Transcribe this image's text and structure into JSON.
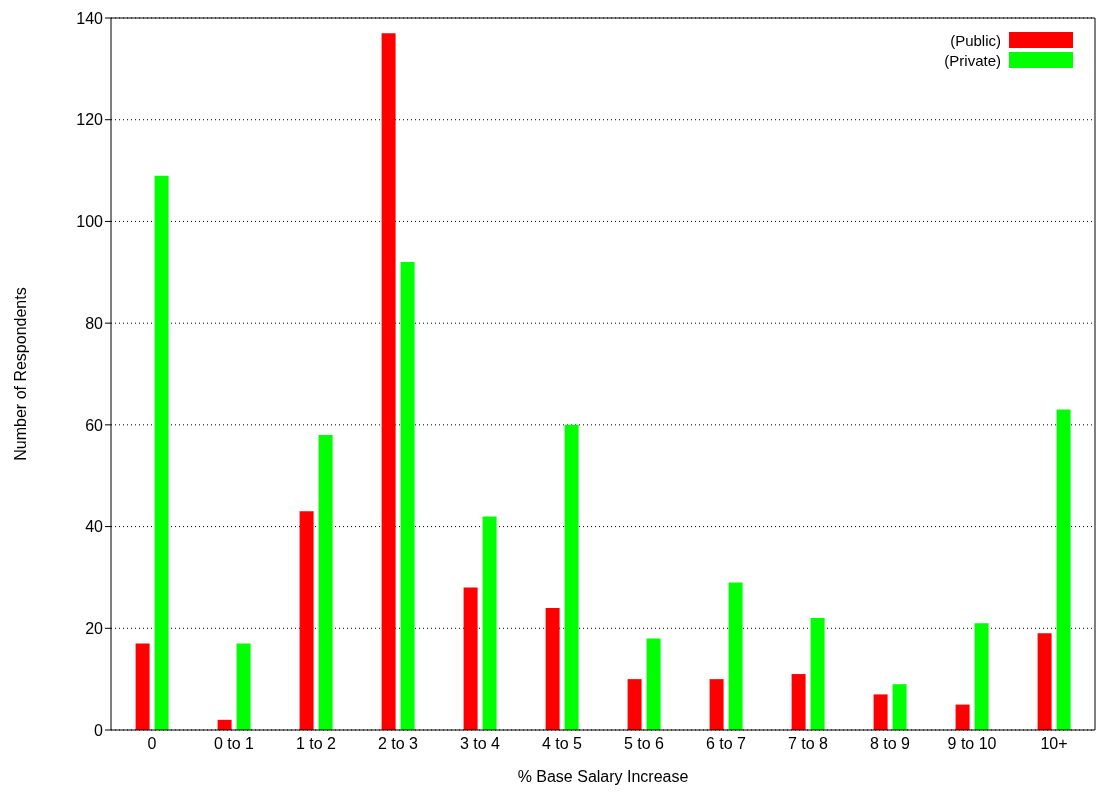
{
  "chart_data": {
    "type": "bar",
    "xlabel": "% Base Salary Increase",
    "ylabel": "Number of Respondents",
    "categories": [
      "0",
      "0 to 1",
      "1 to 2",
      "2 to 3",
      "3 to 4",
      "4 to 5",
      "5 to 6",
      "6 to 7",
      "7 to 8",
      "8 to 9",
      "9 to 10",
      "10+"
    ],
    "series": [
      {
        "name": "(Public)",
        "color": "#ff0000",
        "values": [
          17,
          2,
          43,
          137,
          28,
          24,
          10,
          10,
          11,
          7,
          5,
          19
        ]
      },
      {
        "name": "(Private)",
        "color": "#00ff00",
        "values": [
          109,
          17,
          58,
          92,
          42,
          60,
          18,
          29,
          22,
          9,
          21,
          63
        ]
      }
    ],
    "ylim": [
      0,
      140
    ],
    "yticks": [
      0,
      20,
      40,
      60,
      80,
      100,
      120,
      140
    ],
    "grid": "y",
    "legend": "top right"
  }
}
